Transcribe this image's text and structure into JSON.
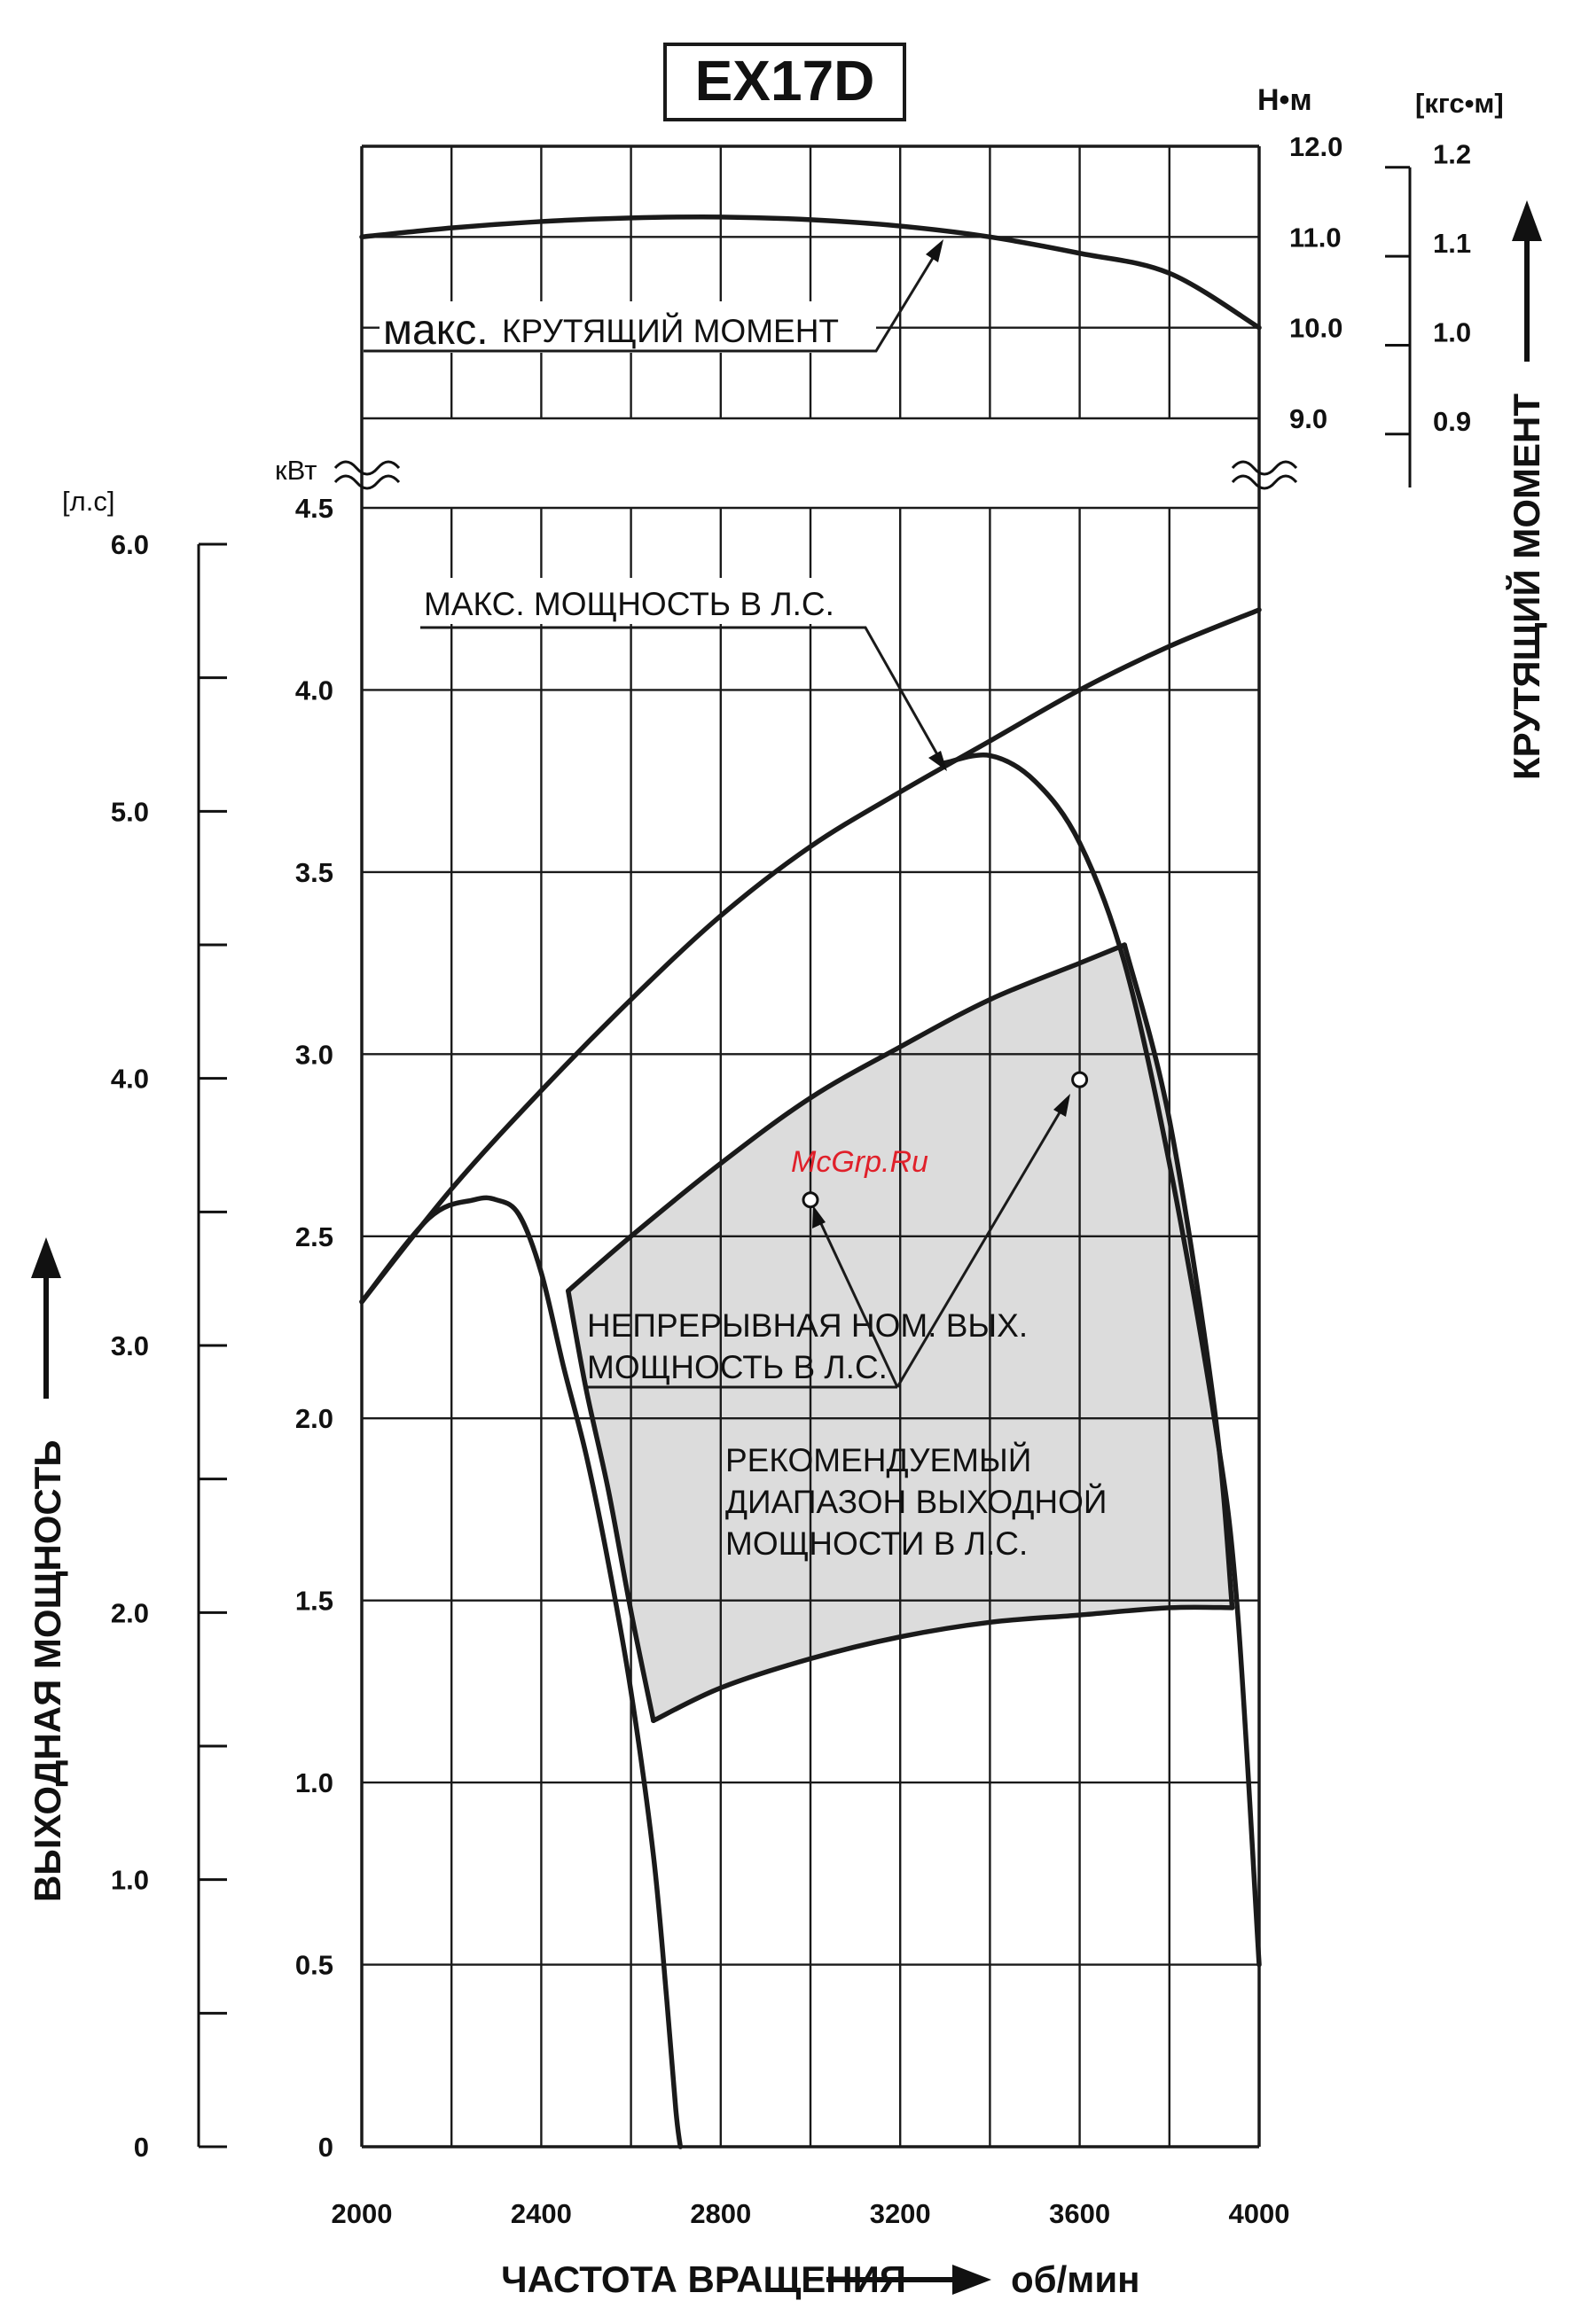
{
  "title": "EX17D",
  "watermark": "McGrp.Ru",
  "colors": {
    "ink": "#1a1a1a",
    "region_fill": "#dcdcdc",
    "watermark": "#e0202a"
  },
  "axes": {
    "x": {
      "label": "ЧАСТОТА ВРАЩЕНИЯ",
      "unit": "об/мин",
      "ticks": [
        "2000",
        "2400",
        "2800",
        "3200",
        "3600",
        "4000"
      ]
    },
    "power_kw": {
      "unit": "кВт",
      "ticks": [
        "0",
        "0.5",
        "1.0",
        "1.5",
        "2.0",
        "2.5",
        "3.0",
        "3.5",
        "4.0",
        "4.5"
      ]
    },
    "power_hp": {
      "unit": "[л.с]",
      "label": "ВЫХОДНАЯ МОЩНОСТЬ",
      "ticks": [
        "0",
        "1.0",
        "2.0",
        "3.0",
        "4.0",
        "5.0",
        "6.0"
      ]
    },
    "torque_nm": {
      "unit": "Н•м",
      "ticks": [
        "12.0",
        "11.0",
        "10.0",
        "9.0"
      ]
    },
    "torque_kgfm": {
      "unit": "[кгс•м]",
      "label": "КРУТЯЩИЙ МОМЕНТ",
      "ticks": [
        "1.2",
        "1.1",
        "1.0",
        "0.9"
      ]
    }
  },
  "annotations": {
    "torque_prefix": "макс.",
    "torque": "КРУТЯЩИЙ МОМЕНТ",
    "max_power": "МАКС. МОЩНОСТЬ В Л.С.",
    "continuous_1": "НЕПРЕРЫВНАЯ НОМ. ВЫХ.",
    "continuous_2": "МОЩНОСТЬ В Л.С.",
    "recommended_1": "РЕКОМЕНДУЕМЫЙ",
    "recommended_2": "ДИАПАЗОН ВЫХОДНОЙ",
    "recommended_3": "МОЩНОСТИ В Л.С."
  },
  "chart_data": {
    "type": "line",
    "xlim": [
      2000,
      4000
    ],
    "y_power_kw_lim": [
      0,
      4.5
    ],
    "y_torque_nm_lim": [
      9.0,
      12.0
    ],
    "grid": true,
    "series": [
      {
        "key": "max_torque",
        "axis": "torque_nm",
        "x": [
          2000,
          2200,
          2400,
          2600,
          2800,
          3000,
          3200,
          3400,
          3600,
          3800,
          4000
        ],
        "y": [
          11.0,
          11.1,
          11.17,
          11.21,
          11.22,
          11.19,
          11.12,
          11.0,
          10.82,
          10.6,
          10.0
        ]
      },
      {
        "key": "max_power_envelope",
        "axis": "power_kw",
        "x": [
          2000,
          2200,
          2400,
          2600,
          2800,
          3000,
          3200,
          3400,
          3600,
          3800,
          4000
        ],
        "y": [
          2.32,
          2.63,
          2.9,
          3.15,
          3.38,
          3.57,
          3.72,
          3.86,
          4.0,
          4.12,
          4.22
        ]
      },
      {
        "key": "max_power_low",
        "axis": "power_kw",
        "x": [
          2000,
          2150,
          2250,
          2300,
          2350,
          2400,
          2450,
          2500,
          2550,
          2600,
          2650,
          2680,
          2700,
          2710
        ],
        "y": [
          2.32,
          2.55,
          2.6,
          2.6,
          2.56,
          2.4,
          2.14,
          1.9,
          1.6,
          1.25,
          0.8,
          0.4,
          0.1,
          0
        ]
      },
      {
        "key": "max_power_high",
        "axis": "power_kw",
        "x": [
          3300,
          3400,
          3500,
          3600,
          3700,
          3800,
          3900,
          3950,
          4000
        ],
        "y": [
          3.8,
          3.82,
          3.75,
          3.58,
          3.25,
          2.7,
          2.0,
          1.5,
          0.5
        ]
      },
      {
        "key": "continuous_rated",
        "axis": "power_kw",
        "x": [
          2460,
          2600,
          2800,
          3000,
          3200,
          3400,
          3600,
          3700
        ],
        "y": [
          2.35,
          2.5,
          2.7,
          2.88,
          3.02,
          3.15,
          3.25,
          3.3
        ]
      },
      {
        "key": "recommended_lower",
        "axis": "power_kw",
        "x": [
          2650,
          2800,
          3000,
          3200,
          3400,
          3600,
          3800,
          3940
        ],
        "y": [
          1.17,
          1.26,
          1.34,
          1.4,
          1.44,
          1.46,
          1.48,
          1.48
        ]
      },
      {
        "key": "recommended_left",
        "axis": "power_kw",
        "x": [
          2460,
          2500,
          2550,
          2600,
          2650
        ],
        "y": [
          2.35,
          2.08,
          1.8,
          1.47,
          1.17
        ]
      },
      {
        "key": "recommended_right",
        "axis": "power_kw",
        "x": [
          3700,
          3800,
          3900,
          3940
        ],
        "y": [
          3.3,
          2.82,
          2.03,
          1.48
        ]
      }
    ],
    "markers": [
      {
        "x": 3000,
        "y": 2.6,
        "axis": "power_kw"
      },
      {
        "x": 3600,
        "y": 2.93,
        "axis": "power_kw"
      }
    ]
  }
}
